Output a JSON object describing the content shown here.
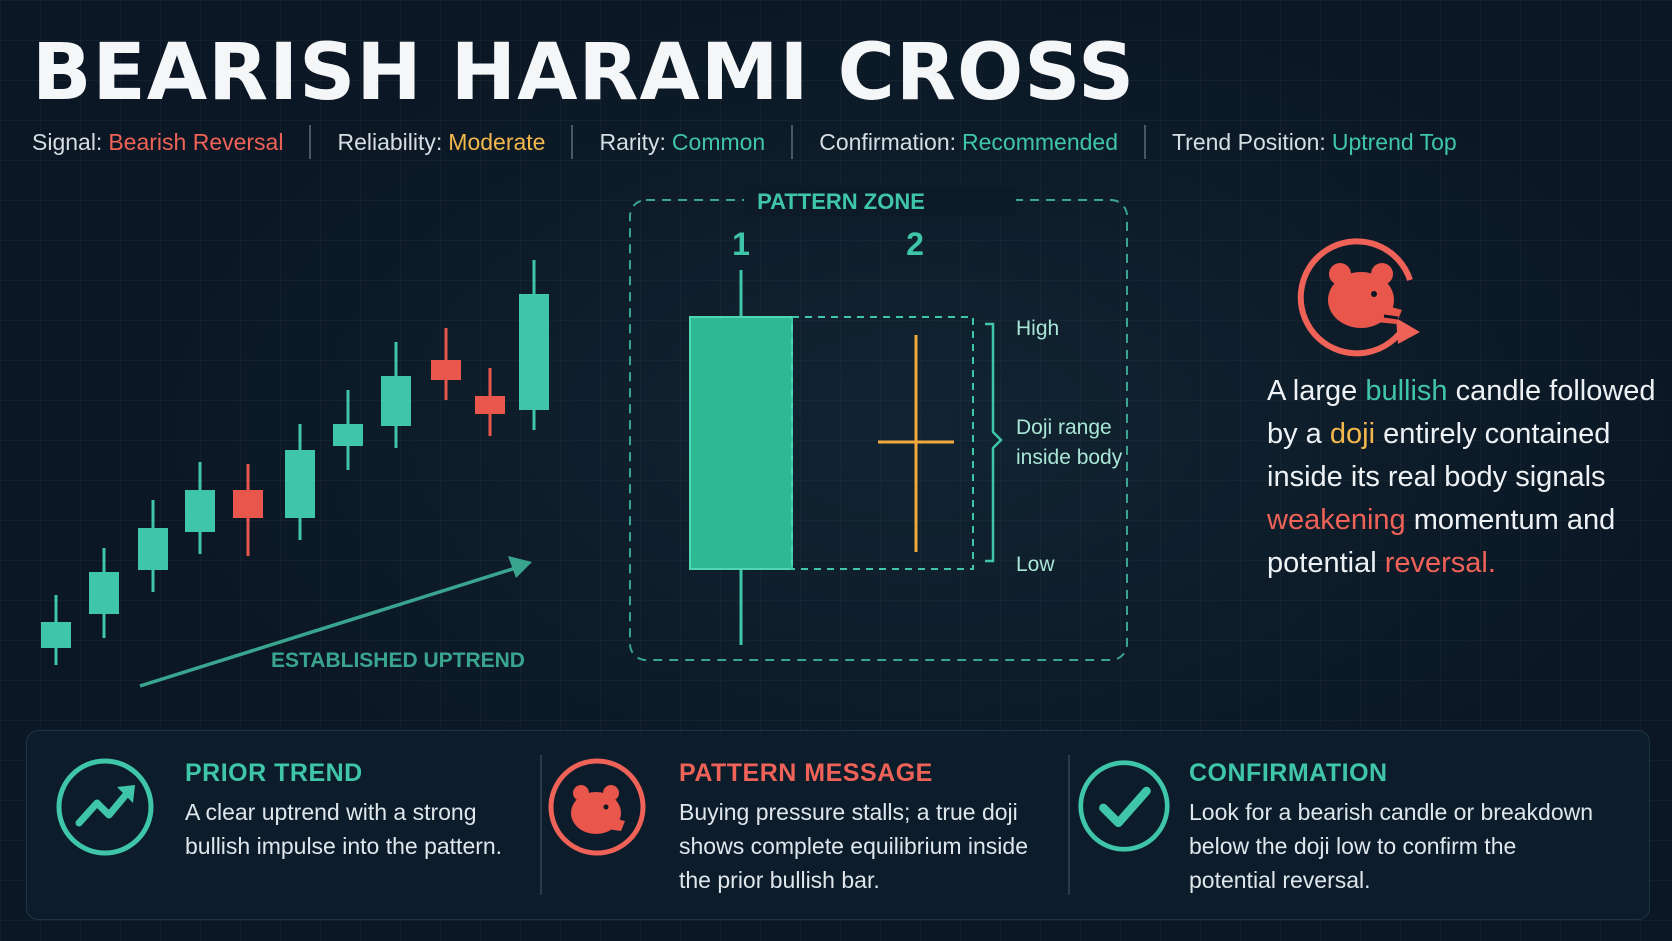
{
  "title": "BEARISH HARAMI CROSS",
  "meta": [
    {
      "label": "Signal:",
      "value": "Bearish Reversal",
      "color": "#ef6257"
    },
    {
      "label": "Reliability:",
      "value": "Moderate",
      "color": "#f2b84b"
    },
    {
      "label": "Rarity:",
      "value": "Common",
      "color": "#3fc6a8"
    },
    {
      "label": "Confirmation:",
      "value": "Recommended",
      "color": "#3fc6a8"
    },
    {
      "label": "Trend Position:",
      "value": "Uptrend Top",
      "color": "#3fc6a8"
    }
  ],
  "uptrend_label": "ESTABLISHED UPTREND",
  "pattern": {
    "zone_label": "PATTERN ZONE",
    "candle1_label": "1",
    "candle2_label": "2",
    "high_label": "High",
    "range_label_line1": "Doji range",
    "range_label_line2": "inside body",
    "low_label": "Low"
  },
  "description": [
    {
      "text": "A large ",
      "color": ""
    },
    {
      "text": "bullish",
      "color": "#3fc6a8"
    },
    {
      "text": " candle followed by a ",
      "color": ""
    },
    {
      "text": "doji",
      "color": "#f2b84b"
    },
    {
      "text": " entirely contained inside its real body signals ",
      "color": ""
    },
    {
      "text": "weakening",
      "color": "#ef6257"
    },
    {
      "text": " momentum and potential ",
      "color": ""
    },
    {
      "text": "reversal.",
      "color": "#ef6257"
    }
  ],
  "cards": [
    {
      "title": "PRIOR TREND",
      "title_color": "#3fc6a8",
      "icon": "trend-up-icon",
      "lines": [
        "A clear uptrend with a strong",
        "bullish impulse into the pattern."
      ]
    },
    {
      "title": "PATTERN MESSAGE",
      "title_color": "#ef6257",
      "icon": "bear-icon",
      "lines": [
        "Buying pressure stalls; a true doji",
        "shows complete equilibrium inside",
        "the prior bullish bar."
      ]
    },
    {
      "title": "CONFIRMATION",
      "title_color": "#3fc6a8",
      "icon": "checkmark-icon",
      "lines": [
        "Look for a bearish candle or breakdown",
        "below the doji low to confirm the",
        "potential reversal."
      ]
    }
  ],
  "colors": {
    "bull": "#3fc6a8",
    "bear": "#e8564c",
    "doji": "#f2a93b",
    "accent_red": "#ef6257"
  }
}
